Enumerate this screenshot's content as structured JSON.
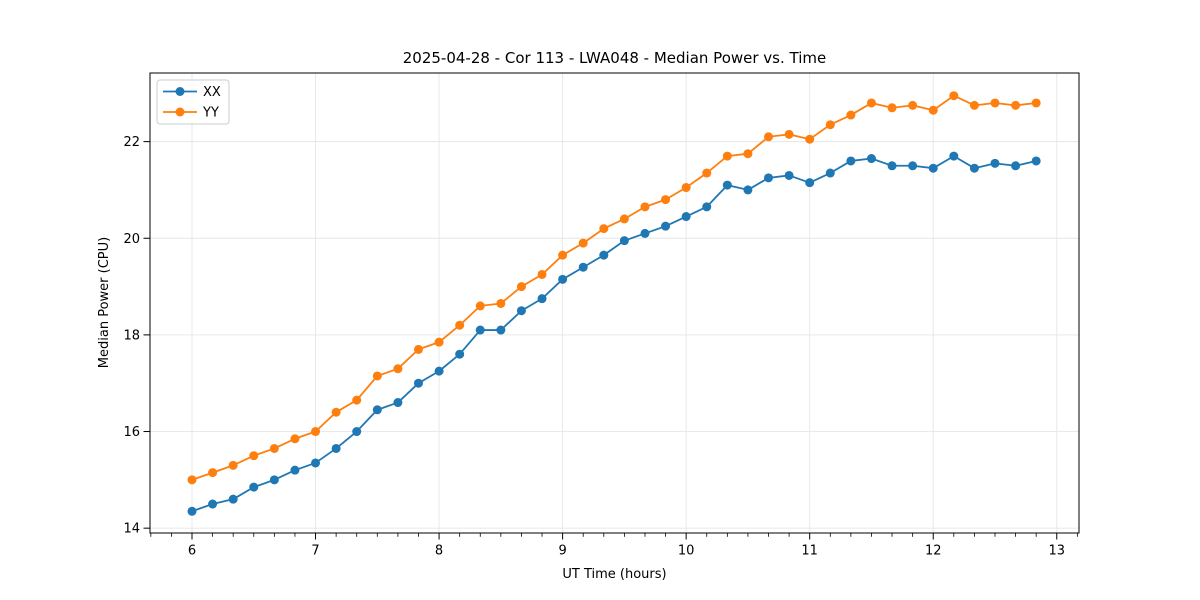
{
  "chart_data": {
    "type": "line",
    "title": "2025-04-28 - Cor 113 - LWA048 - Median Power vs. Time",
    "xlabel": "UT Time (hours)",
    "ylabel": "Median Power (CPU)",
    "xlim": [
      5.66,
      13.18
    ],
    "ylim": [
      13.9,
      23.42
    ],
    "x_ticks": [
      6,
      7,
      8,
      9,
      10,
      11,
      12,
      13
    ],
    "y_ticks": [
      14,
      16,
      18,
      20,
      22
    ],
    "x_minor_interval": 0.16667,
    "grid": true,
    "background_color": "#ffffff",
    "grid_color": "#e6e6e6",
    "spine_color": "#000000",
    "legend_position": "upper left",
    "x": [
      6.0,
      6.1667,
      6.3333,
      6.5,
      6.6667,
      6.8333,
      7.0,
      7.1667,
      7.3333,
      7.5,
      7.6667,
      7.8333,
      8.0,
      8.1667,
      8.3333,
      8.5,
      8.6667,
      8.8333,
      9.0,
      9.1667,
      9.3333,
      9.5,
      9.6667,
      9.8333,
      10.0,
      10.1667,
      10.3333,
      10.5,
      10.6667,
      10.8333,
      11.0,
      11.1667,
      11.3333,
      11.5,
      11.6667,
      11.8333,
      12.0,
      12.1667,
      12.3333,
      12.5,
      12.6667,
      12.8333
    ],
    "series": [
      {
        "name": "XX",
        "color": "#1f77b4",
        "values": [
          14.35,
          14.5,
          14.6,
          14.85,
          15.0,
          15.2,
          15.35,
          15.65,
          16.0,
          16.45,
          16.6,
          17.0,
          17.25,
          17.6,
          18.1,
          18.1,
          18.5,
          18.75,
          19.15,
          19.4,
          19.65,
          19.95,
          20.1,
          20.25,
          20.45,
          20.65,
          21.1,
          21.0,
          21.25,
          21.3,
          21.15,
          21.35,
          21.6,
          21.65,
          21.5,
          21.5,
          21.45,
          21.7,
          21.45,
          21.55,
          21.5,
          21.6
        ]
      },
      {
        "name": "YY",
        "color": "#ff7f0e",
        "values": [
          15.0,
          15.15,
          15.3,
          15.5,
          15.65,
          15.85,
          16.0,
          16.4,
          16.65,
          17.15,
          17.3,
          17.7,
          17.85,
          18.2,
          18.6,
          18.65,
          19.0,
          19.25,
          19.65,
          19.9,
          20.2,
          20.4,
          20.65,
          20.8,
          21.05,
          21.35,
          21.7,
          21.75,
          22.1,
          22.15,
          22.05,
          22.35,
          22.55,
          22.8,
          22.7,
          22.75,
          22.65,
          22.95,
          22.75,
          22.8,
          22.75,
          22.8
        ]
      }
    ]
  }
}
